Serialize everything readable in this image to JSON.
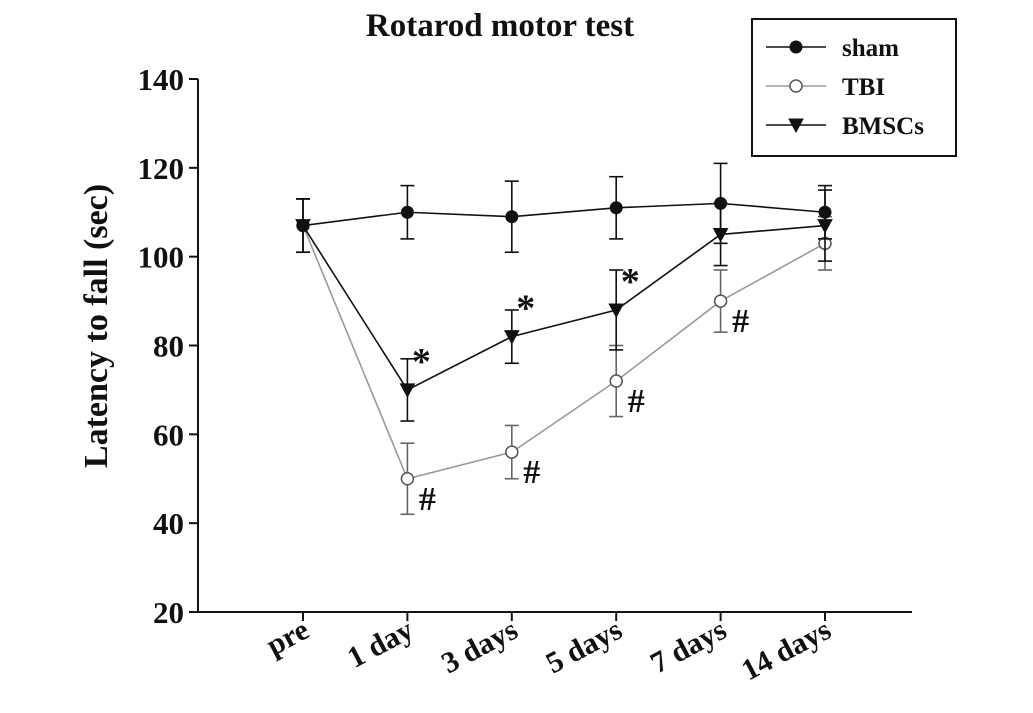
{
  "chart_data": {
    "type": "line",
    "title": "Rotarod motor test",
    "xlabel": "",
    "ylabel": "Latency to fall (sec)",
    "categories": [
      "pre",
      "1 day",
      "3 days",
      "5 days",
      "7 days",
      "14 days"
    ],
    "ylim": [
      20,
      140
    ],
    "yticks": [
      20,
      40,
      60,
      80,
      100,
      120,
      140
    ],
    "grid": false,
    "legend_position": "top-right",
    "series": [
      {
        "name": "sham",
        "marker": "filled-circle",
        "color": "#111111",
        "values": [
          107,
          110,
          109,
          111,
          112,
          110
        ],
        "errors": [
          6,
          6,
          8,
          7,
          9,
          6
        ],
        "annotations": [
          "",
          "",
          "",
          "",
          "",
          ""
        ]
      },
      {
        "name": "TBI",
        "marker": "open-circle",
        "color": "#9a9a9a",
        "values": [
          107,
          50,
          56,
          72,
          90,
          103
        ],
        "errors": [
          6,
          8,
          6,
          8,
          7,
          6
        ],
        "annotations": [
          "",
          "#",
          "#",
          "#",
          "#",
          ""
        ]
      },
      {
        "name": "BMSCs",
        "marker": "filled-triangle-down",
        "color": "#111111",
        "values": [
          107,
          70,
          82,
          88,
          105,
          107
        ],
        "errors": [
          6,
          7,
          6,
          9,
          7,
          8
        ],
        "annotations": [
          "",
          "*",
          "*",
          "*",
          "",
          ""
        ]
      }
    ]
  }
}
